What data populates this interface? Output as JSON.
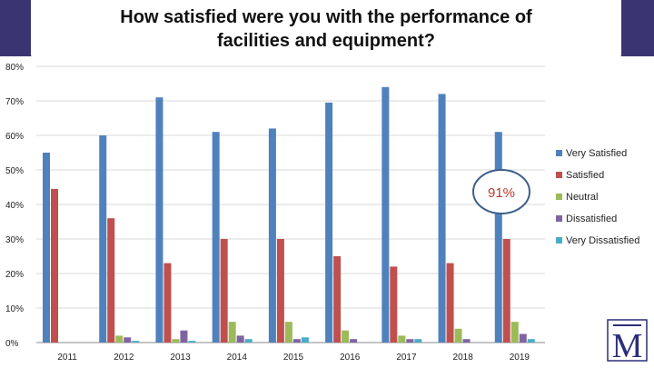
{
  "chart_data": {
    "type": "bar",
    "title": "How satisfied were you with the performance of facilities and equipment?",
    "categories": [
      "2011",
      "2012",
      "2013",
      "2014",
      "2015",
      "2016",
      "2017",
      "2018",
      "2019"
    ],
    "series": [
      {
        "name": "Very Satisfied",
        "color": "#4f81bd",
        "values": [
          55,
          60,
          71,
          61,
          62,
          69.5,
          74,
          72,
          61
        ]
      },
      {
        "name": "Satisfied",
        "color": "#c0504d",
        "values": [
          44.5,
          36,
          23,
          30,
          30,
          25,
          22,
          23,
          30
        ]
      },
      {
        "name": "Neutral",
        "color": "#9bbb59",
        "values": [
          0,
          2,
          1,
          6,
          6,
          3.5,
          2,
          4,
          6
        ]
      },
      {
        "name": "Dissatisfied",
        "color": "#8064a2",
        "values": [
          0,
          1.5,
          3.5,
          2,
          1,
          1,
          1,
          1,
          2.5
        ]
      },
      {
        "name": "Very Dissatisfied",
        "color": "#4bacc6",
        "values": [
          0,
          0.5,
          0.5,
          1,
          1.5,
          0,
          1,
          0,
          1
        ]
      }
    ],
    "y_ticks": [
      "0%",
      "10%",
      "20%",
      "30%",
      "40%",
      "50%",
      "60%",
      "70%",
      "80%"
    ],
    "ylim": [
      0,
      80
    ],
    "grid": true,
    "legend_position": "right",
    "annotation": {
      "text": "91%",
      "category": "2019"
    }
  },
  "logo": {
    "letter": "M"
  }
}
